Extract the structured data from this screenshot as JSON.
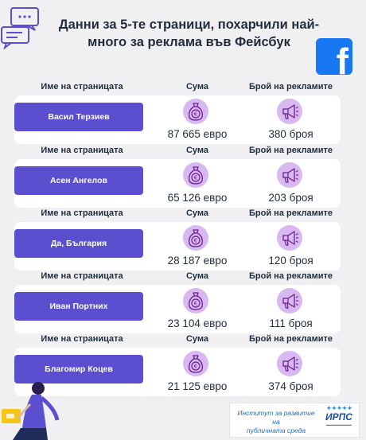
{
  "title": "Данни за 5-те страници, похарчили най-много за реклама във Фейсбук",
  "colors": {
    "background": "#f0f0f3",
    "accent": "#5b4fcf",
    "icon_bg": "#d7b8f0",
    "icon_fg": "#6a1f8a",
    "facebook": "#1877f2"
  },
  "headers": {
    "page_name": "Име на страницата",
    "amount": "Сума",
    "ad_count": "Брой на рекламите"
  },
  "rows": [
    {
      "name": "Васил Терзиев",
      "amount": "87 665 евро",
      "ads": "380 броя"
    },
    {
      "name": "Асен Ангелов",
      "amount": "65 126 евро",
      "ads": "203 броя"
    },
    {
      "name": "Да, България",
      "amount": "28 187 евро",
      "ads": "120 броя"
    },
    {
      "name": "Иван Портних",
      "amount": "23 104 евро",
      "ads": "111 броя"
    },
    {
      "name": "Благомир Коцев",
      "amount": "21 125 евро",
      "ads": "374 броя"
    }
  ],
  "icons": {
    "chat": "chat-bubbles-icon",
    "money": "money-bag-euro-icon",
    "megaphone": "megaphone-icon",
    "facebook": "facebook-logo"
  },
  "footer": {
    "institute_line1": "Институт за развитие на",
    "institute_line2": "публичната среда",
    "abbr": "ИРПС"
  }
}
